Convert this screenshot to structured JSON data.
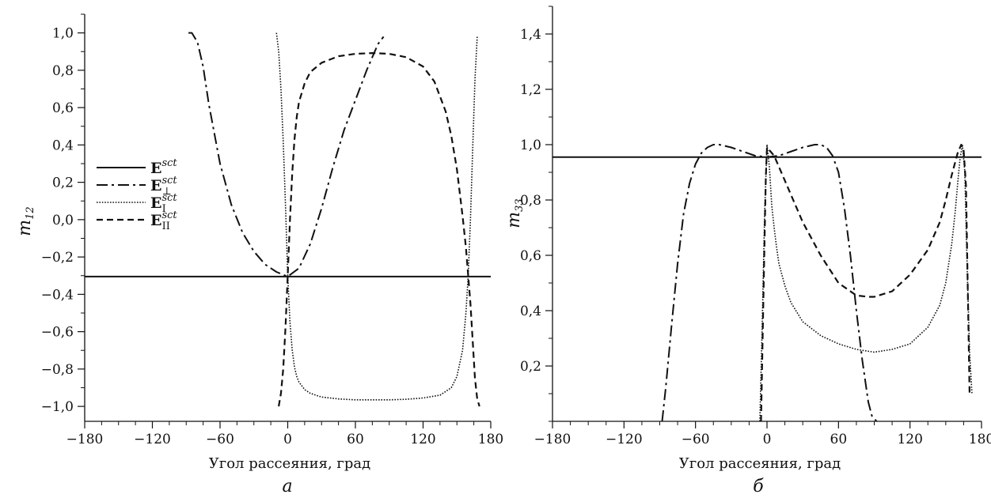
{
  "chart_data": [
    {
      "type": "line",
      "panel_label": "а",
      "xlabel": "Угол рассеяния, град",
      "ylabel": "m",
      "ylabel_sub": "12",
      "xlim": [
        -180,
        180
      ],
      "ylim": [
        -1.08,
        1.1
      ],
      "xticks": [
        -180,
        -120,
        -60,
        0,
        60,
        120,
        180
      ],
      "xtick_labels": [
        "−180",
        "−120",
        "−60",
        "0",
        "60",
        "120",
        "180"
      ],
      "yticks": [
        -1.0,
        -0.8,
        -0.6,
        -0.4,
        -0.2,
        0.0,
        0.2,
        0.4,
        0.6,
        0.8,
        1.0
      ],
      "ytick_labels": [
        "−1,0",
        "−0,8",
        "−0,6",
        "−0,4",
        "−0,2",
        "0,0",
        "0,2",
        "0,4",
        "0,6",
        "0,8",
        "1,0"
      ],
      "legend": {
        "position": "center-left",
        "entries": [
          {
            "base": "E",
            "sup": "sct",
            "sub": "",
            "style": "solid"
          },
          {
            "base": "E",
            "sup": "sct",
            "sub": "⊥",
            "style": "dashdot"
          },
          {
            "base": "E",
            "sup": "sct",
            "sub": "I",
            "style": "dotted"
          },
          {
            "base": "E",
            "sup": "sct",
            "sub": "II",
            "style": "dashed"
          }
        ]
      },
      "series": [
        {
          "style": "solid",
          "x": [
            -180,
            180
          ],
          "y": [
            -0.305,
            -0.305
          ]
        },
        {
          "style": "dashdot",
          "x": [
            -88,
            -85,
            -80,
            -75,
            -70,
            -60,
            -50,
            -40,
            -30,
            -20,
            -10,
            0,
            10,
            20,
            30,
            40,
            50,
            60,
            70,
            80,
            85
          ],
          "y": [
            1.0,
            1.0,
            0.95,
            0.82,
            0.62,
            0.3,
            0.08,
            -0.07,
            -0.17,
            -0.24,
            -0.28,
            -0.305,
            -0.26,
            -0.13,
            0.06,
            0.28,
            0.48,
            0.64,
            0.8,
            0.94,
            0.98
          ]
        },
        {
          "style": "dotted",
          "x": [
            -10,
            -8,
            -6,
            -4,
            -2,
            0,
            2,
            4,
            6,
            8,
            10,
            15,
            20,
            30,
            45,
            60,
            75,
            90,
            105,
            120,
            135,
            145,
            150,
            155,
            158,
            160,
            162,
            164,
            166,
            168
          ],
          "y": [
            1.0,
            0.9,
            0.7,
            0.42,
            0.08,
            -0.3,
            -0.55,
            -0.7,
            -0.79,
            -0.84,
            -0.87,
            -0.91,
            -0.93,
            -0.95,
            -0.96,
            -0.965,
            -0.965,
            -0.965,
            -0.962,
            -0.955,
            -0.94,
            -0.9,
            -0.84,
            -0.7,
            -0.5,
            -0.3,
            0.0,
            0.38,
            0.75,
            0.98
          ]
        },
        {
          "style": "dashed",
          "x": [
            -8,
            -6,
            -4,
            -2,
            0,
            2,
            4,
            6,
            8,
            10,
            15,
            20,
            30,
            45,
            60,
            75,
            90,
            105,
            120,
            130,
            140,
            145,
            150,
            155,
            158,
            160,
            162,
            164,
            166,
            168,
            170
          ],
          "y": [
            -1.0,
            -0.93,
            -0.8,
            -0.58,
            -0.3,
            0.0,
            0.25,
            0.43,
            0.55,
            0.63,
            0.73,
            0.79,
            0.84,
            0.875,
            0.888,
            0.892,
            0.888,
            0.87,
            0.82,
            0.74,
            0.58,
            0.45,
            0.27,
            0.02,
            -0.15,
            -0.3,
            -0.45,
            -0.65,
            -0.85,
            -0.96,
            -1.0
          ]
        }
      ]
    },
    {
      "type": "line",
      "panel_label": "б",
      "xlabel": "Угол рассеяния, град",
      "ylabel": "m",
      "ylabel_sub": "33",
      "xlim": [
        -180,
        180
      ],
      "ylim": [
        0,
        1.5
      ],
      "xticks": [
        -180,
        -120,
        -60,
        0,
        60,
        120,
        180
      ],
      "xtick_labels": [
        "−180",
        "−120",
        "−60",
        "0",
        "60",
        "120",
        "180"
      ],
      "yticks": [
        0.2,
        0.4,
        0.6,
        0.8,
        1.0,
        1.2,
        1.4
      ],
      "ytick_labels": [
        "0,2",
        "0,4",
        "0,6",
        "0,8",
        "1,0",
        "1,2",
        "1,4"
      ],
      "series": [
        {
          "style": "solid",
          "x": [
            -180,
            180
          ],
          "y": [
            0.955,
            0.955
          ]
        },
        {
          "style": "dashdot",
          "x": [
            -88,
            -85,
            -80,
            -75,
            -70,
            -65,
            -60,
            -55,
            -50,
            -45,
            -40,
            -30,
            -20,
            -10,
            0,
            10,
            20,
            30,
            40,
            45,
            50,
            55,
            60,
            65,
            70,
            75,
            80,
            85,
            88,
            92
          ],
          "y": [
            0.0,
            0.12,
            0.35,
            0.57,
            0.75,
            0.86,
            0.93,
            0.97,
            0.99,
            1.0,
            1.0,
            0.99,
            0.975,
            0.96,
            0.955,
            0.96,
            0.975,
            0.99,
            1.0,
            1.0,
            0.99,
            0.96,
            0.9,
            0.77,
            0.6,
            0.4,
            0.22,
            0.07,
            0.02,
            0.0
          ]
        },
        {
          "style": "dotted",
          "x": [
            -6,
            -4,
            -2,
            0,
            2,
            4,
            6,
            8,
            10,
            15,
            20,
            30,
            45,
            60,
            75,
            90,
            105,
            120,
            135,
            145,
            150,
            155,
            158,
            160,
            162,
            164,
            166,
            168,
            170,
            172
          ],
          "y": [
            0.0,
            0.35,
            0.75,
            1.0,
            0.92,
            0.78,
            0.7,
            0.63,
            0.57,
            0.49,
            0.43,
            0.36,
            0.31,
            0.28,
            0.26,
            0.25,
            0.26,
            0.28,
            0.34,
            0.42,
            0.5,
            0.64,
            0.76,
            0.86,
            0.95,
            1.0,
            0.9,
            0.55,
            0.25,
            0.1
          ]
        },
        {
          "style": "dashed",
          "x": [
            -5,
            -3,
            -1,
            0,
            2,
            4,
            6,
            8,
            10,
            15,
            20,
            30,
            45,
            60,
            75,
            85,
            90,
            105,
            120,
            135,
            145,
            150,
            155,
            160,
            163,
            165,
            167,
            169,
            170
          ],
          "y": [
            0.0,
            0.45,
            0.88,
            0.99,
            0.98,
            0.97,
            0.96,
            0.94,
            0.92,
            0.87,
            0.82,
            0.72,
            0.6,
            0.5,
            0.455,
            0.45,
            0.45,
            0.47,
            0.53,
            0.62,
            0.72,
            0.8,
            0.89,
            0.97,
            1.0,
            0.98,
            0.85,
            0.35,
            0.1
          ]
        }
      ]
    }
  ]
}
